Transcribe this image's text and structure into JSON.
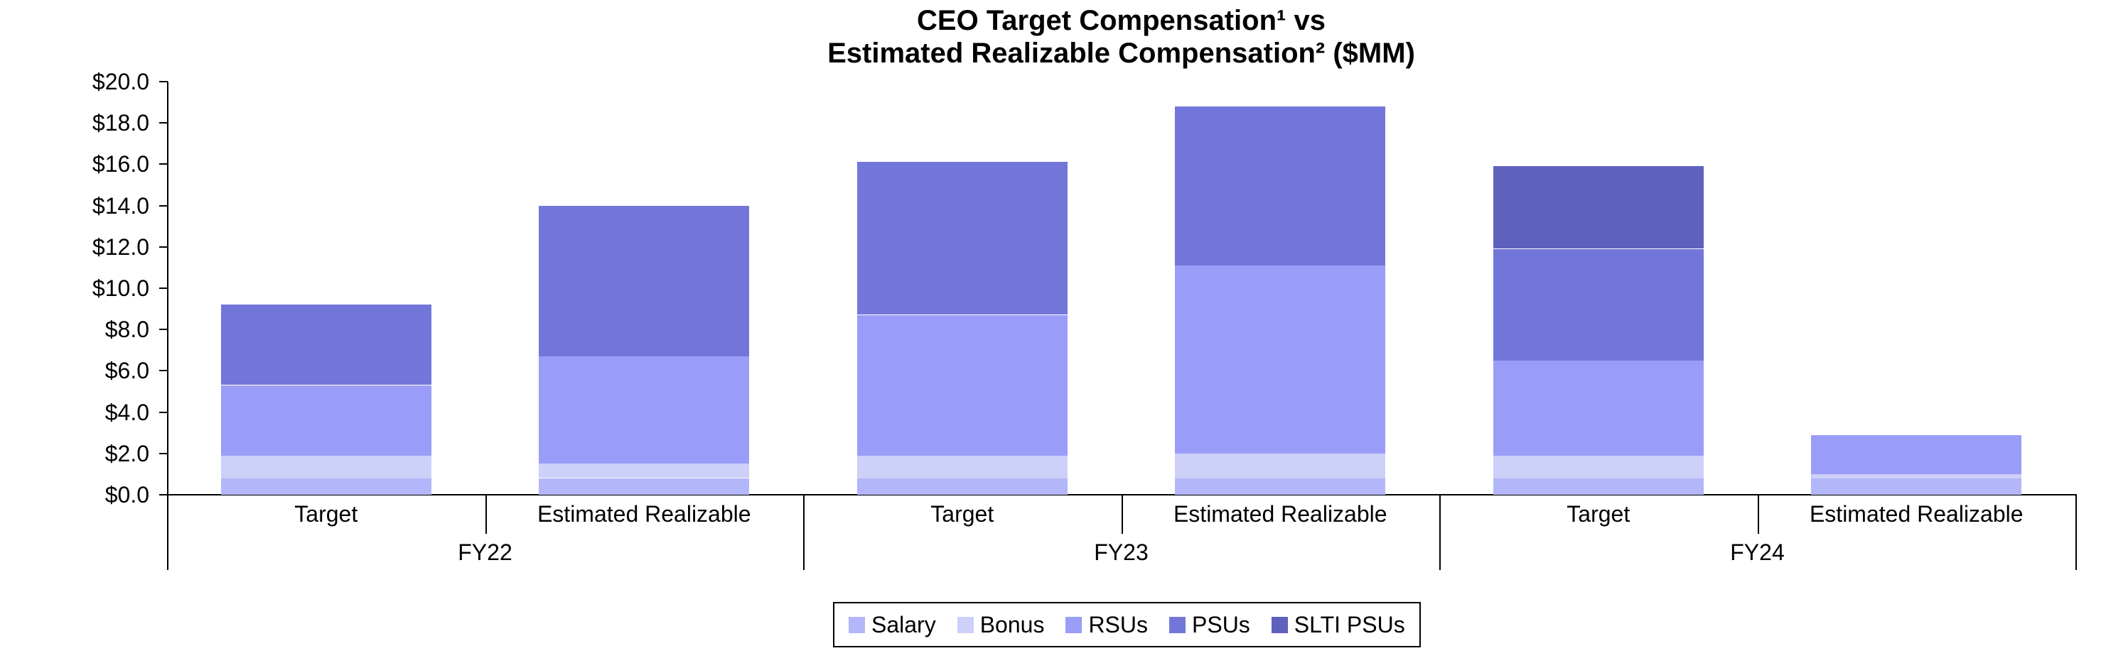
{
  "title": {
    "line1": "CEO Target Compensation¹ vs",
    "line2": "Estimated Realizable Compensation² ($MM)"
  },
  "chart_data": {
    "type": "bar",
    "stacked": true,
    "unit": "$MM",
    "title": "CEO Target Compensation¹ vs Estimated Realizable Compensation² ($MM)",
    "categories": [
      "Target",
      "Estimated Realizable",
      "Target",
      "Estimated Realizable",
      "Target",
      "Estimated Realizable"
    ],
    "groups": [
      {
        "label": "FY22",
        "span": 2
      },
      {
        "label": "FY23",
        "span": 2
      },
      {
        "label": "FY24",
        "span": 2
      }
    ],
    "series": [
      {
        "name": "Salary",
        "color": "#b3b6f8",
        "values": [
          0.8,
          0.8,
          0.8,
          0.8,
          0.8,
          0.8
        ]
      },
      {
        "name": "Bonus",
        "color": "#cdd0f8",
        "values": [
          1.1,
          0.7,
          1.1,
          1.2,
          1.1,
          0.2
        ]
      },
      {
        "name": "RSUs",
        "color": "#9a9df8",
        "values": [
          3.4,
          5.2,
          6.8,
          9.1,
          4.6,
          1.9
        ]
      },
      {
        "name": "PSUs",
        "color": "#7376d9",
        "values": [
          3.9,
          7.3,
          7.4,
          7.7,
          5.4,
          0
        ]
      },
      {
        "name": "SLTI PSUs",
        "color": "#5f62bd",
        "values": [
          0,
          0,
          0,
          0,
          4.0,
          0
        ]
      }
    ],
    "totals": [
      9.2,
      14.0,
      16.1,
      18.8,
      15.9,
      2.9
    ],
    "ylim": [
      0,
      20
    ],
    "y_tick_step": 2,
    "y_tick_labels": [
      "$0.0",
      "$2.0",
      "$4.0",
      "$6.0",
      "$8.0",
      "$10.0",
      "$12.0",
      "$14.0",
      "$16.0",
      "$18.0",
      "$20.0"
    ],
    "grid": false,
    "legend_position": "bottom",
    "axis_color": "#000000",
    "text_color": "#000000"
  }
}
